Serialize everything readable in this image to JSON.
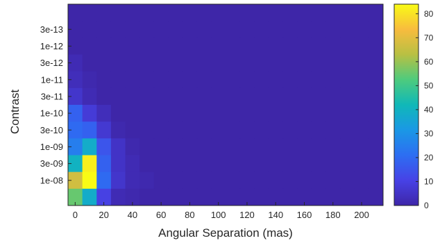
{
  "chart_data": {
    "type": "heatmap",
    "title": "",
    "xlabel": "Angular Separation (mas)",
    "ylabel": "Contrast",
    "x_ticks": [
      0,
      20,
      40,
      60,
      80,
      100,
      120,
      140,
      160,
      180,
      200
    ],
    "xlim": [
      -5,
      215
    ],
    "x_bin_width": 10,
    "y_tick_labels_top_to_bottom": [
      "3e-13",
      "1e-12",
      "3e-12",
      "1e-11",
      "3e-11",
      "1e-10",
      "3e-10",
      "1e-09",
      "3e-09",
      "1e-08"
    ],
    "y_tick_row_index": [
      1,
      2,
      3,
      4,
      5,
      6,
      7,
      8,
      9,
      10
    ],
    "n_rows": 12,
    "n_cols": 22,
    "row_order": "top_to_bottom",
    "colorbar": {
      "min": 0,
      "max": 84,
      "ticks": [
        0,
        10,
        20,
        30,
        40,
        50,
        60,
        70,
        80
      ],
      "colormap": [
        "#3e26a8",
        "#4742e6",
        "#2d6ef2",
        "#1a98e5",
        "#10b8b8",
        "#4ecb7d",
        "#b8c043",
        "#f8bc3e",
        "#f9fb15"
      ]
    },
    "values": [
      [
        0,
        0,
        0,
        0,
        0,
        0,
        0,
        0,
        0,
        0,
        0,
        0,
        0,
        0,
        0,
        0,
        0,
        0,
        0,
        0,
        0,
        0
      ],
      [
        0,
        0,
        0,
        0,
        0,
        0,
        0,
        0,
        0,
        0,
        0,
        0,
        0,
        0,
        0,
        0,
        0,
        0,
        0,
        0,
        0,
        0
      ],
      [
        0,
        0,
        0,
        0,
        0,
        0,
        0,
        0,
        0,
        0,
        0,
        0,
        0,
        0,
        0,
        0,
        0,
        0,
        0,
        0,
        0,
        0
      ],
      [
        2,
        0,
        0,
        0,
        0,
        0,
        0,
        0,
        0,
        0,
        0,
        0,
        0,
        0,
        0,
        0,
        0,
        0,
        0,
        0,
        0,
        0
      ],
      [
        3,
        1,
        0,
        0,
        0,
        0,
        0,
        0,
        0,
        0,
        0,
        0,
        0,
        0,
        0,
        0,
        0,
        0,
        0,
        0,
        0,
        0
      ],
      [
        6,
        2,
        0,
        0,
        0,
        0,
        0,
        0,
        0,
        0,
        0,
        0,
        0,
        0,
        0,
        0,
        0,
        0,
        0,
        0,
        0,
        0
      ],
      [
        18,
        8,
        3,
        0,
        0,
        0,
        0,
        0,
        0,
        0,
        0,
        0,
        0,
        0,
        0,
        0,
        0,
        0,
        0,
        0,
        0,
        0
      ],
      [
        20,
        18,
        7,
        1,
        0,
        0,
        0,
        0,
        0,
        0,
        0,
        0,
        0,
        0,
        0,
        0,
        0,
        0,
        0,
        0,
        0,
        0
      ],
      [
        25,
        38,
        15,
        5,
        1,
        0,
        0,
        0,
        0,
        0,
        0,
        0,
        0,
        0,
        0,
        0,
        0,
        0,
        0,
        0,
        0,
        0
      ],
      [
        40,
        82,
        18,
        5,
        2,
        0,
        0,
        0,
        0,
        0,
        0,
        0,
        0,
        0,
        0,
        0,
        0,
        0,
        0,
        0,
        0,
        0
      ],
      [
        67,
        84,
        20,
        6,
        2,
        1,
        0,
        0,
        0,
        0,
        0,
        0,
        0,
        0,
        0,
        0,
        0,
        0,
        0,
        0,
        0,
        0
      ],
      [
        55,
        38,
        10,
        2,
        1,
        0,
        0,
        0,
        0,
        0,
        0,
        0,
        0,
        0,
        0,
        0,
        0,
        0,
        0,
        0,
        0,
        0
      ]
    ]
  }
}
